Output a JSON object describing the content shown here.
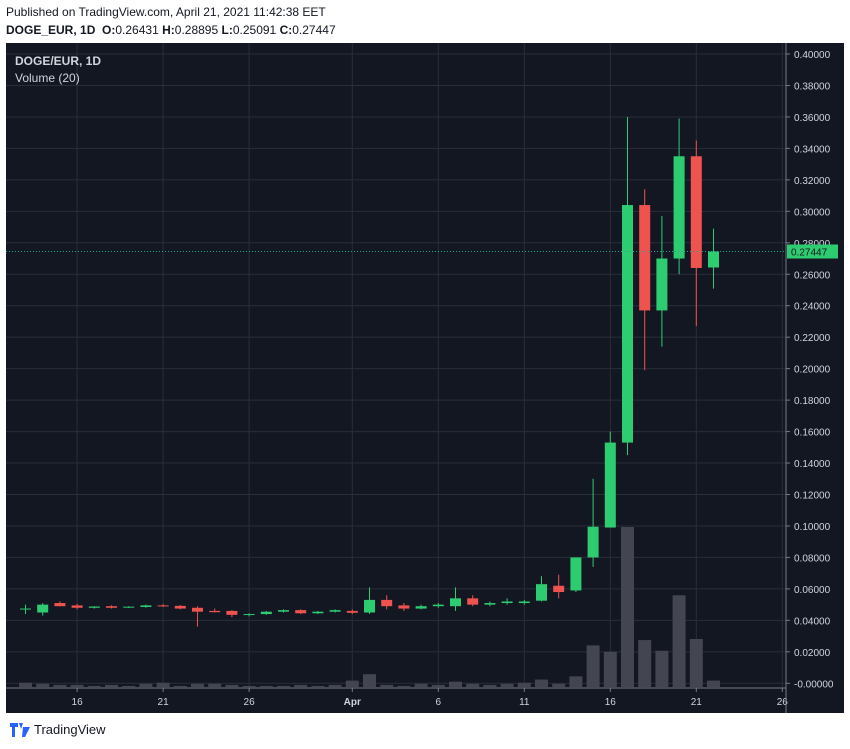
{
  "header": {
    "published": "Published on TradingView.com, April 21, 2021 11:42:38 EET",
    "symbol": "DOGE_EUR, 1D",
    "o_label": "O:",
    "o_val": "0.26431",
    "h_label": "H:",
    "h_val": "0.28895",
    "l_label": "L:",
    "l_val": "0.25091",
    "c_label": "C:",
    "c_val": "0.27447"
  },
  "legend": {
    "title": "DOGE/EUR, 1D",
    "volume": "Volume (20)"
  },
  "footer": {
    "brand": "TradingView"
  },
  "colors": {
    "bg": "#131722",
    "up": "#26a69a",
    "upbright": "#2ecc71",
    "down": "#ef5350",
    "grid": "#2a2e39",
    "axis": "#787b86",
    "volume": "#434651",
    "price_line": "#26a69a"
  },
  "chart_data": {
    "type": "candlestick",
    "title": "DOGE/EUR, 1D",
    "y_axis": {
      "position": "right",
      "ticks": [
        "0.40000",
        "0.38000",
        "0.36000",
        "0.34000",
        "0.32000",
        "0.30000",
        "0.28000",
        "0.26000",
        "0.24000",
        "0.22000",
        "0.20000",
        "0.18000",
        "0.16000",
        "0.14000",
        "0.12000",
        "0.10000",
        "0.08000",
        "0.06000",
        "0.04000",
        "0.02000",
        "-0.00000"
      ],
      "range": [
        -0.003,
        0.407
      ]
    },
    "x_axis": {
      "ticks": [
        "16",
        "21",
        "26",
        "Apr",
        "6",
        "11",
        "16",
        "21",
        "26"
      ]
    },
    "last_price": {
      "value": 0.27447,
      "label": "0.27447"
    },
    "ohlc": [
      {
        "o": 0.047,
        "h": 0.05,
        "l": 0.044,
        "c": 0.0475
      },
      {
        "o": 0.045,
        "h": 0.051,
        "l": 0.043,
        "c": 0.05
      },
      {
        "o": 0.051,
        "h": 0.052,
        "l": 0.049,
        "c": 0.049
      },
      {
        "o": 0.0495,
        "h": 0.0505,
        "l": 0.047,
        "c": 0.048
      },
      {
        "o": 0.048,
        "h": 0.049,
        "l": 0.0475,
        "c": 0.0488
      },
      {
        "o": 0.049,
        "h": 0.0495,
        "l": 0.0475,
        "c": 0.048
      },
      {
        "o": 0.0482,
        "h": 0.049,
        "l": 0.0478,
        "c": 0.0487
      },
      {
        "o": 0.0485,
        "h": 0.05,
        "l": 0.048,
        "c": 0.0495
      },
      {
        "o": 0.0495,
        "h": 0.0505,
        "l": 0.0485,
        "c": 0.049
      },
      {
        "o": 0.0492,
        "h": 0.0498,
        "l": 0.047,
        "c": 0.0475
      },
      {
        "o": 0.048,
        "h": 0.049,
        "l": 0.036,
        "c": 0.0455
      },
      {
        "o": 0.046,
        "h": 0.0475,
        "l": 0.045,
        "c": 0.0452
      },
      {
        "o": 0.046,
        "h": 0.0465,
        "l": 0.042,
        "c": 0.0435
      },
      {
        "o": 0.0435,
        "h": 0.0445,
        "l": 0.0425,
        "c": 0.044
      },
      {
        "o": 0.044,
        "h": 0.046,
        "l": 0.0435,
        "c": 0.0455
      },
      {
        "o": 0.0455,
        "h": 0.047,
        "l": 0.045,
        "c": 0.0465
      },
      {
        "o": 0.0465,
        "h": 0.047,
        "l": 0.044,
        "c": 0.0445
      },
      {
        "o": 0.0445,
        "h": 0.046,
        "l": 0.044,
        "c": 0.0455
      },
      {
        "o": 0.0455,
        "h": 0.047,
        "l": 0.045,
        "c": 0.0465
      },
      {
        "o": 0.046,
        "h": 0.047,
        "l": 0.044,
        "c": 0.0448
      },
      {
        "o": 0.045,
        "h": 0.061,
        "l": 0.044,
        "c": 0.053
      },
      {
        "o": 0.053,
        "h": 0.056,
        "l": 0.047,
        "c": 0.049
      },
      {
        "o": 0.0495,
        "h": 0.051,
        "l": 0.046,
        "c": 0.0475
      },
      {
        "o": 0.0475,
        "h": 0.05,
        "l": 0.047,
        "c": 0.049
      },
      {
        "o": 0.049,
        "h": 0.051,
        "l": 0.048,
        "c": 0.05
      },
      {
        "o": 0.049,
        "h": 0.061,
        "l": 0.046,
        "c": 0.054
      },
      {
        "o": 0.054,
        "h": 0.056,
        "l": 0.049,
        "c": 0.05
      },
      {
        "o": 0.05,
        "h": 0.052,
        "l": 0.049,
        "c": 0.051
      },
      {
        "o": 0.051,
        "h": 0.054,
        "l": 0.05,
        "c": 0.052
      },
      {
        "o": 0.051,
        "h": 0.053,
        "l": 0.05,
        "c": 0.052
      },
      {
        "o": 0.0525,
        "h": 0.068,
        "l": 0.052,
        "c": 0.063
      },
      {
        "o": 0.062,
        "h": 0.069,
        "l": 0.054,
        "c": 0.058
      },
      {
        "o": 0.059,
        "h": 0.08,
        "l": 0.058,
        "c": 0.08
      },
      {
        "o": 0.08,
        "h": 0.13,
        "l": 0.074,
        "c": 0.0995
      },
      {
        "o": 0.099,
        "h": 0.16,
        "l": 0.099,
        "c": 0.153
      },
      {
        "o": 0.153,
        "h": 0.36,
        "l": 0.145,
        "c": 0.304
      },
      {
        "o": 0.304,
        "h": 0.314,
        "l": 0.199,
        "c": 0.237
      },
      {
        "o": 0.237,
        "h": 0.297,
        "l": 0.214,
        "c": 0.27
      },
      {
        "o": 0.27,
        "h": 0.359,
        "l": 0.26,
        "c": 0.335
      },
      {
        "o": 0.335,
        "h": 0.345,
        "l": 0.227,
        "c": 0.264
      },
      {
        "o": 0.2643,
        "h": 0.289,
        "l": 0.2509,
        "c": 0.2745
      }
    ],
    "volume": [
      0.4,
      0.3,
      0.2,
      0.2,
      0.1,
      0.2,
      0.1,
      0.3,
      0.4,
      0.1,
      0.3,
      0.3,
      0.2,
      0.1,
      0.1,
      0.1,
      0.2,
      0.1,
      0.2,
      0.6,
      1.2,
      0.2,
      0.1,
      0.3,
      0.2,
      0.5,
      0.3,
      0.2,
      0.3,
      0.4,
      0.7,
      0.3,
      1.0,
      3.9,
      3.3,
      15.0,
      4.4,
      3.4,
      8.6,
      4.5,
      0.6
    ]
  }
}
